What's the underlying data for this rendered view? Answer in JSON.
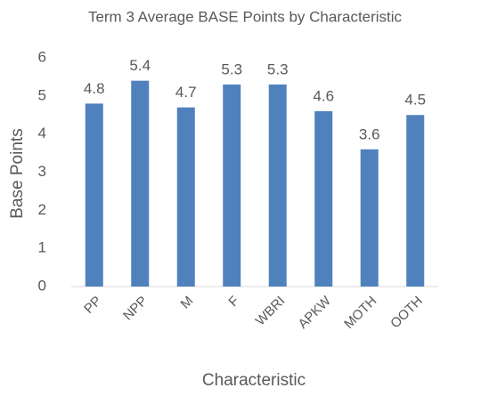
{
  "chart_data": {
    "type": "bar",
    "title": "Term 3 Average BASE Points by Characteristic",
    "x_label": "Characteristic",
    "y_label": "Base Points",
    "categories": [
      "PP",
      "NPP",
      "M",
      "F",
      "WBRI",
      "APKW",
      "MOTH",
      "OOTH"
    ],
    "values": [
      4.8,
      5.4,
      4.7,
      5.3,
      5.3,
      4.6,
      3.6,
      4.5
    ],
    "color": "#4f81bd",
    "ylim": [
      0,
      6
    ],
    "yticks": [
      0,
      1,
      2,
      3,
      4,
      5,
      6
    ],
    "grid": false
  }
}
